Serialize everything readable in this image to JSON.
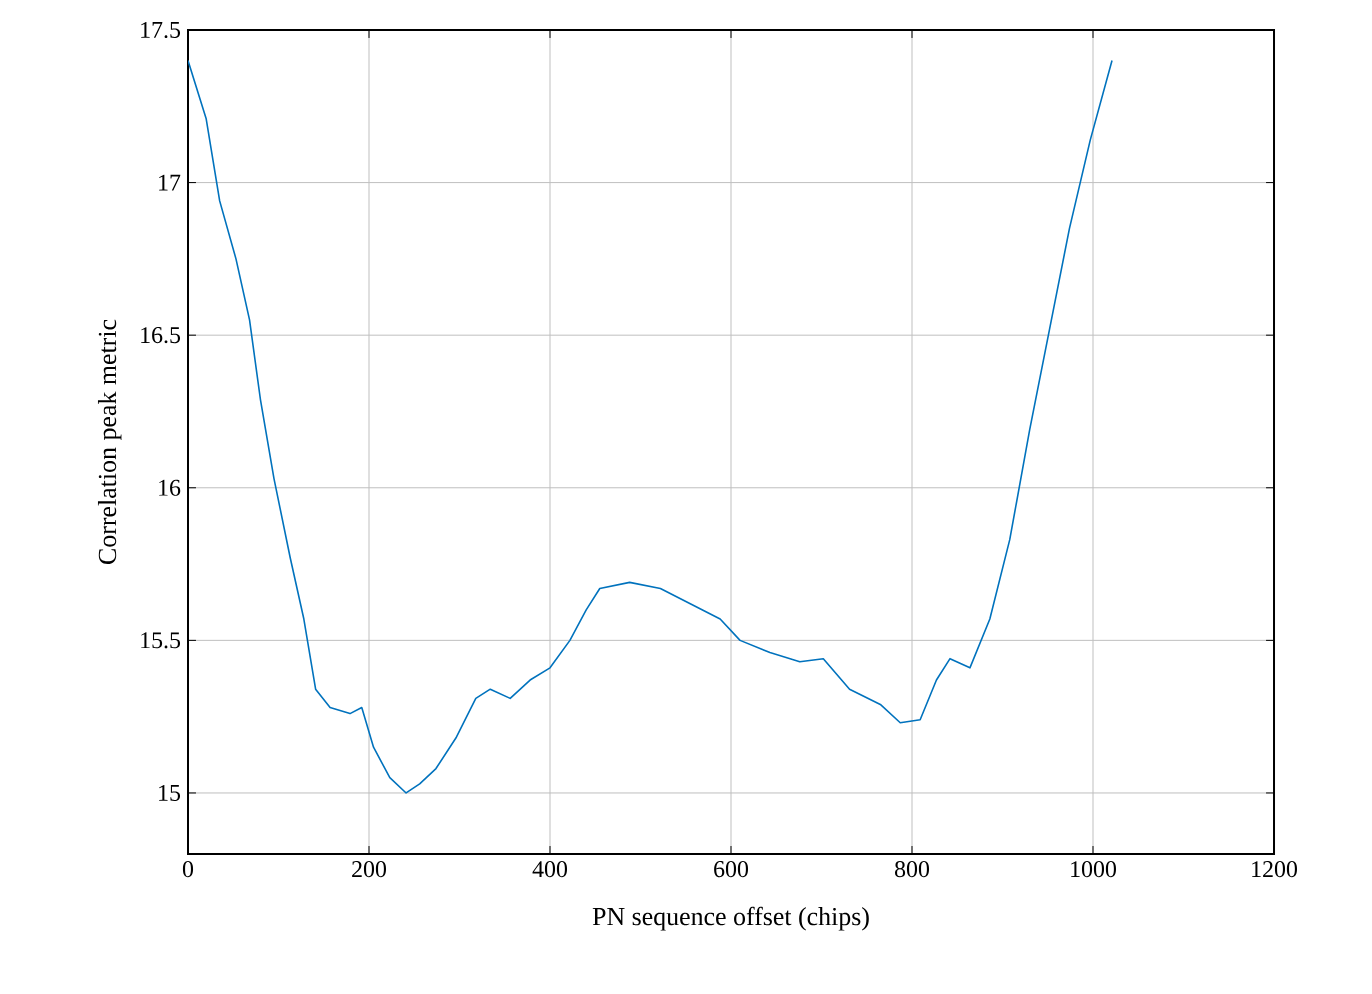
{
  "chart_data": {
    "type": "line",
    "xlabel": "PN sequence offset (chips)",
    "ylabel": "Correlation peak metric",
    "xlim": [
      0,
      1200
    ],
    "xticks": [
      0,
      200,
      400,
      600,
      800,
      1000,
      1200
    ],
    "ylim": [
      14.8,
      17.5
    ],
    "yticks": [
      15,
      15.5,
      16,
      16.5,
      17,
      17.5
    ],
    "grid": true,
    "line_style": "solid",
    "series": [
      {
        "color": "#0072bd",
        "x": [
          0,
          20,
          35,
          53,
          68,
          80,
          95,
          113,
          128,
          141,
          157,
          179,
          192,
          205,
          223,
          241,
          256,
          274,
          296,
          318,
          334,
          356,
          378,
          400,
          422,
          440,
          455,
          488,
          522,
          555,
          588,
          610,
          643,
          676,
          702,
          731,
          765,
          787,
          809,
          827,
          842,
          864,
          886,
          908,
          930,
          952,
          974,
          997,
          1021
        ],
        "values": [
          17.4,
          17.21,
          16.94,
          16.75,
          16.55,
          16.29,
          16.03,
          15.77,
          15.57,
          15.34,
          15.28,
          15.26,
          15.28,
          15.15,
          15.05,
          15.0,
          15.03,
          15.08,
          15.18,
          15.31,
          15.34,
          15.31,
          15.37,
          15.41,
          15.5,
          15.6,
          15.67,
          15.69,
          15.67,
          15.62,
          15.57,
          15.5,
          15.46,
          15.43,
          15.44,
          15.34,
          15.29,
          15.23,
          15.24,
          15.37,
          15.44,
          15.41,
          15.57,
          15.83,
          16.19,
          16.52,
          16.85,
          17.14,
          17.4
        ]
      }
    ]
  }
}
